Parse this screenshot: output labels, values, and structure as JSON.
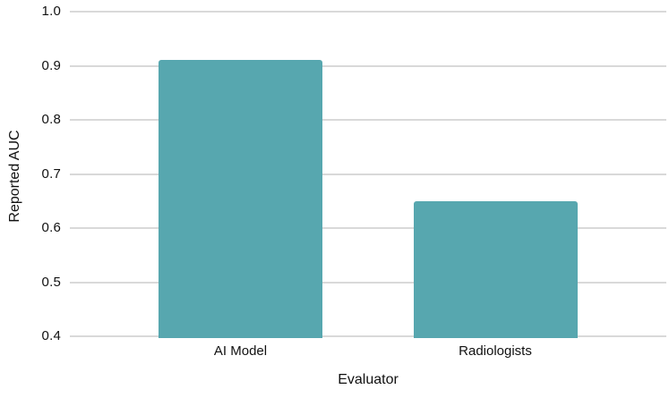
{
  "chart_data": {
    "type": "bar",
    "categories": [
      "AI Model",
      "Radiologists"
    ],
    "values": [
      0.91,
      0.65
    ],
    "title": "",
    "xlabel": "Evaluator",
    "ylabel": "Reported AUC",
    "ylim": [
      0.4,
      1.0
    ],
    "yticks": [
      0.4,
      0.5,
      0.6,
      0.7,
      0.8,
      0.9,
      1.0
    ],
    "ytick_labels": [
      "0.4",
      "0.5",
      "0.6",
      "0.7",
      "0.8",
      "0.9",
      "1.0"
    ],
    "grid": true,
    "legend": "none",
    "colors": {
      "bar": "#57A7AF",
      "gridline": "#D9D9D9",
      "text": "#111111",
      "background": "#FFFFFF"
    }
  }
}
